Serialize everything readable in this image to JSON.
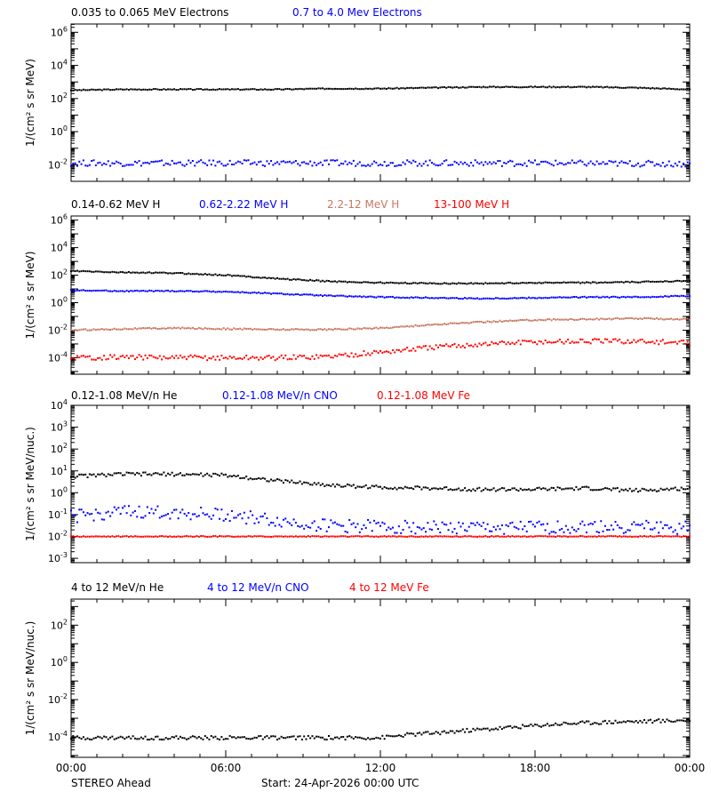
{
  "footer": {
    "left": "STEREO Ahead",
    "start": "Start: 24-Apr-2026 00:00 UTC"
  },
  "xaxis": {
    "hours": [
      0,
      6,
      12,
      18,
      24
    ],
    "labels": [
      "00:00",
      "06:00",
      "12:00",
      "18:00",
      "00:00"
    ]
  },
  "chart_data": [
    {
      "type": "scatter",
      "ylabel": "1/(cm² s sr MeV)",
      "ylim_log10": [
        -3,
        6.5
      ],
      "yticks_log10": [
        -2,
        0,
        2,
        4,
        6
      ],
      "xlim_hours": [
        0,
        24
      ],
      "series": [
        {
          "name": "0.035 to 0.065 MeV Electrons",
          "color": "#000000",
          "x": [
            0,
            2,
            4,
            6,
            8,
            10,
            12,
            14,
            16,
            18,
            20,
            22,
            24
          ],
          "log10": [
            2.5,
            2.55,
            2.55,
            2.55,
            2.55,
            2.6,
            2.6,
            2.65,
            2.7,
            2.7,
            2.7,
            2.65,
            2.55
          ],
          "jitter": 0.03
        },
        {
          "name": "0.7 to 4.0 Mev Electrons",
          "color": "#0000ff",
          "x": [
            0,
            6,
            12,
            18,
            24
          ],
          "log10": [
            -1.9,
            -1.9,
            -1.9,
            -1.9,
            -1.95
          ],
          "jitter": 0.18
        }
      ]
    },
    {
      "type": "scatter",
      "ylabel": "1/(cm² s sr MeV)",
      "ylim_log10": [
        -5.2,
        6.3
      ],
      "yticks_log10": [
        -4,
        -2,
        0,
        2,
        4,
        6
      ],
      "xlim_hours": [
        0,
        24
      ],
      "series": [
        {
          "name": "0.14-0.62 MeV H",
          "color": "#000000",
          "x": [
            0,
            2,
            4,
            6,
            8,
            10,
            12,
            14,
            16,
            18,
            20,
            22,
            24
          ],
          "log10": [
            2.3,
            2.2,
            2.15,
            2.0,
            1.75,
            1.55,
            1.45,
            1.4,
            1.4,
            1.45,
            1.45,
            1.5,
            1.6
          ],
          "jitter": 0.04
        },
        {
          "name": "0.62-2.22 MeV H",
          "color": "#0000ff",
          "x": [
            0,
            2,
            4,
            6,
            8,
            10,
            12,
            14,
            16,
            18,
            20,
            22,
            24
          ],
          "log10": [
            0.9,
            0.85,
            0.85,
            0.8,
            0.65,
            0.5,
            0.4,
            0.35,
            0.3,
            0.35,
            0.4,
            0.4,
            0.5
          ],
          "jitter": 0.04
        },
        {
          "name": "2.2-12 MeV H",
          "color": "#c87860",
          "x": [
            0,
            2,
            4,
            6,
            8,
            10,
            12,
            14,
            16,
            18,
            20,
            22,
            24
          ],
          "log10": [
            -2.0,
            -1.9,
            -1.85,
            -1.9,
            -1.95,
            -1.95,
            -1.85,
            -1.6,
            -1.4,
            -1.25,
            -1.2,
            -1.15,
            -1.2
          ],
          "jitter": 0.05
        },
        {
          "name": "13-100 MeV H",
          "color": "#ff0000",
          "x": [
            0,
            2,
            4,
            6,
            8,
            10,
            12,
            14,
            16,
            18,
            20,
            22,
            24
          ],
          "log10": [
            -4.0,
            -3.95,
            -4.0,
            -4.0,
            -4.0,
            -3.9,
            -3.6,
            -3.25,
            -3.0,
            -2.85,
            -2.8,
            -2.8,
            -2.95
          ],
          "jitter": 0.18
        }
      ]
    },
    {
      "type": "scatter",
      "ylabel": "1/(cm² s sr MeV/nuc.)",
      "ylim_log10": [
        -3.2,
        4.0
      ],
      "yticks_log10": [
        -3,
        -2,
        -1,
        0,
        1,
        2,
        3,
        4
      ],
      "xlim_hours": [
        0,
        24
      ],
      "series": [
        {
          "name": "0.12-1.08 MeV/n He",
          "color": "#000000",
          "x": [
            0,
            2,
            4,
            6,
            8,
            10,
            12,
            14,
            16,
            18,
            20,
            22,
            24
          ],
          "log10": [
            0.75,
            0.85,
            0.85,
            0.8,
            0.55,
            0.35,
            0.25,
            0.2,
            0.15,
            0.15,
            0.2,
            0.1,
            0.2
          ],
          "jitter": 0.08
        },
        {
          "name": "0.12-1.08 MeV/n CNO",
          "color": "#0000ff",
          "x": [
            0,
            2,
            4,
            6,
            8,
            10,
            12,
            14,
            16,
            18,
            20,
            22,
            24
          ],
          "log10": [
            -1.1,
            -0.9,
            -0.9,
            -1.0,
            -1.3,
            -1.5,
            -1.55,
            -1.6,
            -1.6,
            -1.6,
            -1.55,
            -1.55,
            -1.6
          ],
          "jitter": 0.3
        },
        {
          "name": "0.12-1.08 MeV Fe",
          "color": "#ff0000",
          "x": [
            0,
            24
          ],
          "log10": [
            -2.0,
            -2.0
          ],
          "jitter": 0.02
        }
      ]
    },
    {
      "type": "scatter",
      "ylabel": "1/(cm² s sr MeV/nuc.)",
      "ylim_log10": [
        -5.1,
        3.4
      ],
      "yticks_log10": [
        -4,
        -2,
        0,
        2
      ],
      "xlim_hours": [
        0,
        24
      ],
      "series": [
        {
          "name": "4 to 12 MeV/n He",
          "color": "#000000",
          "x": [
            0,
            6,
            10,
            12,
            13,
            15,
            17,
            19,
            21,
            23,
            24
          ],
          "log10": [
            -4.05,
            -4.05,
            -4.05,
            -4.05,
            -3.9,
            -3.7,
            -3.5,
            -3.3,
            -3.2,
            -3.15,
            -3.1
          ],
          "jitter": 0.1
        },
        {
          "name": "4 to 12 MeV/n CNO",
          "color": "#0000ff",
          "x": [],
          "log10": [],
          "jitter": 0
        },
        {
          "name": "4 to 12 MeV Fe",
          "color": "#ff0000",
          "x": [],
          "log10": [],
          "jitter": 0
        }
      ]
    }
  ]
}
